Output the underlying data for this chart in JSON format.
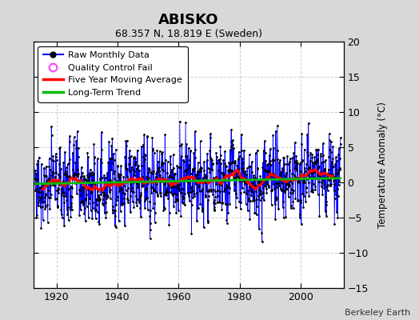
{
  "title": "ABISKO",
  "subtitle": "68.357 N, 18.819 E (Sweden)",
  "ylabel": "Temperature Anomaly (°C)",
  "credit": "Berkeley Earth",
  "year_start": 1913,
  "year_end": 2013,
  "ylim": [
    -15,
    20
  ],
  "yticks": [
    -15,
    -10,
    -5,
    0,
    5,
    10,
    15,
    20
  ],
  "xticks": [
    1920,
    1940,
    1960,
    1980,
    2000
  ],
  "raw_color": "#0000ff",
  "moving_avg_color": "#ff0000",
  "trend_color": "#00bb00",
  "qc_color": "#ff44ff",
  "bg_color": "#d8d8d8",
  "plot_bg_color": "#ffffff",
  "grid_color": "#cccccc",
  "seed": 77,
  "moving_avg_window": 60,
  "trend_slope": 0.008,
  "trend_intercept": -0.2,
  "noise_scale": 2.8
}
